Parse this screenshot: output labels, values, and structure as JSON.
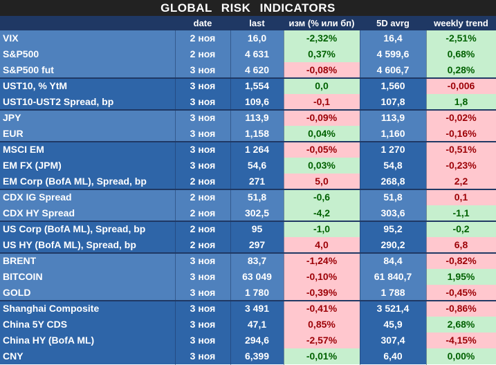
{
  "title": "GLOBAL   RISK   INDICATORS",
  "headers": [
    "",
    "date",
    "last",
    "изм (% или бп)",
    "5D avrg",
    "weekly trend"
  ],
  "colors": {
    "positive_bg": "#c6efce",
    "positive_text": "#006100",
    "negative_bg": "#ffc7ce",
    "negative_text": "#9c0006",
    "row_blue_light": "#4f81bd",
    "row_blue_dark": "#2e65a8",
    "header_bg": "#1f3864"
  },
  "rows": [
    {
      "name": "VIX",
      "date": "2 ноя",
      "last": "16,0",
      "chg": "-2,32%",
      "chg_sign": "pos",
      "avg": "16,4",
      "trend": "-2,51%",
      "trend_sign": "pos",
      "group": 0
    },
    {
      "name": "S&P500",
      "date": "2 ноя",
      "last": "4 631",
      "chg": "0,37%",
      "chg_sign": "pos",
      "avg": "4 599,6",
      "trend": "0,68%",
      "trend_sign": "pos",
      "group": 0
    },
    {
      "name": "S&P500 fut",
      "date": "3 ноя",
      "last": "4 620",
      "chg": "-0,08%",
      "chg_sign": "neg",
      "avg": "4 606,7",
      "trend": "0,28%",
      "trend_sign": "pos",
      "group": 0
    },
    {
      "name": "UST10, % YtM",
      "date": "3 ноя",
      "last": "1,554",
      "chg": "0,0",
      "chg_sign": "pos",
      "avg": "1,560",
      "trend": "-0,006",
      "trend_sign": "neg",
      "group": 1
    },
    {
      "name": "UST10-UST2 Spread, bp",
      "date": "3 ноя",
      "last": "109,6",
      "chg": "-0,1",
      "chg_sign": "neg",
      "avg": "107,8",
      "trend": "1,8",
      "trend_sign": "pos",
      "group": 1
    },
    {
      "name": "JPY",
      "date": "3 ноя",
      "last": "113,9",
      "chg": "-0,09%",
      "chg_sign": "neg",
      "avg": "113,9",
      "trend": "-0,02%",
      "trend_sign": "neg",
      "group": 2
    },
    {
      "name": "EUR",
      "date": "3 ноя",
      "last": "1,158",
      "chg": "0,04%",
      "chg_sign": "pos",
      "avg": "1,160",
      "trend": "-0,16%",
      "trend_sign": "neg",
      "group": 2
    },
    {
      "name": "MSCI EM",
      "date": "3 ноя",
      "last": "1 264",
      "chg": "-0,05%",
      "chg_sign": "neg",
      "avg": "1 270",
      "trend": "-0,51%",
      "trend_sign": "neg",
      "group": 3
    },
    {
      "name": "EM FX (JPM)",
      "date": "3 ноя",
      "last": "54,6",
      "chg": "0,03%",
      "chg_sign": "pos",
      "avg": "54,8",
      "trend": "-0,23%",
      "trend_sign": "neg",
      "group": 3
    },
    {
      "name": "EM Corp (BofA ML), Spread, bp",
      "date": "2 ноя",
      "last": "271",
      "chg": "5,0",
      "chg_sign": "neg",
      "avg": "268,8",
      "trend": "2,2",
      "trend_sign": "neg",
      "group": 3
    },
    {
      "name": "CDX IG Spread",
      "date": "2 ноя",
      "last": "51,8",
      "chg": "-0,6",
      "chg_sign": "pos",
      "avg": "51,8",
      "trend": "0,1",
      "trend_sign": "neg",
      "group": 4
    },
    {
      "name": "CDX HY Spread",
      "date": "2 ноя",
      "last": "302,5",
      "chg": "-4,2",
      "chg_sign": "pos",
      "avg": "303,6",
      "trend": "-1,1",
      "trend_sign": "pos",
      "group": 4
    },
    {
      "name": "US Corp (BofA ML), Spread, bp",
      "date": "2 ноя",
      "last": "95",
      "chg": "-1,0",
      "chg_sign": "pos",
      "avg": "95,2",
      "trend": "-0,2",
      "trend_sign": "pos",
      "group": 5
    },
    {
      "name": "US HY (BofA ML), Spread, bp",
      "date": "2 ноя",
      "last": "297",
      "chg": "4,0",
      "chg_sign": "neg",
      "avg": "290,2",
      "trend": "6,8",
      "trend_sign": "neg",
      "group": 5
    },
    {
      "name": "BRENT",
      "date": "3 ноя",
      "last": "83,7",
      "chg": "-1,24%",
      "chg_sign": "neg",
      "avg": "84,4",
      "trend": "-0,82%",
      "trend_sign": "neg",
      "group": 6
    },
    {
      "name": "BITCOIN",
      "date": "3 ноя",
      "last": "63 049",
      "chg": "-0,10%",
      "chg_sign": "neg",
      "avg": "61 840,7",
      "trend": "1,95%",
      "trend_sign": "pos",
      "group": 6
    },
    {
      "name": "GOLD",
      "date": "3 ноя",
      "last": "1 780",
      "chg": "-0,39%",
      "chg_sign": "neg",
      "avg": "1 788",
      "trend": "-0,45%",
      "trend_sign": "neg",
      "group": 6
    },
    {
      "name": "Shanghai Composite",
      "date": "3 ноя",
      "last": "3 491",
      "chg": "-0,41%",
      "chg_sign": "neg",
      "avg": "3 521,4",
      "trend": "-0,86%",
      "trend_sign": "neg",
      "group": 7
    },
    {
      "name": "China 5Y CDS",
      "date": "3 ноя",
      "last": "47,1",
      "chg": "0,85%",
      "chg_sign": "neg",
      "avg": "45,9",
      "trend": "2,68%",
      "trend_sign": "pos",
      "group": 7
    },
    {
      "name": "China HY (BofA ML)",
      "date": "3 ноя",
      "last": "294,6",
      "chg": "-2,57%",
      "chg_sign": "neg",
      "avg": "307,4",
      "trend": "-4,15%",
      "trend_sign": "neg",
      "group": 7
    },
    {
      "name": "CNY",
      "date": "3 ноя",
      "last": "6,399",
      "chg": "-0,01%",
      "chg_sign": "pos",
      "avg": "6,40",
      "trend": "0,00%",
      "trend_sign": "pos",
      "group": 7
    }
  ]
}
